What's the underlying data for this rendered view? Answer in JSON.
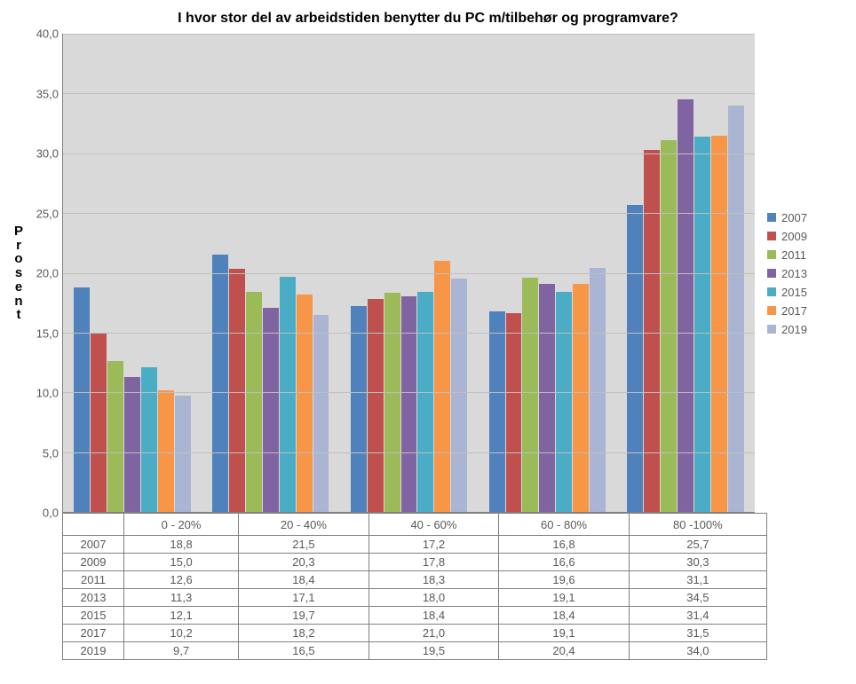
{
  "chart": {
    "type": "bar",
    "title": "I hvor stor del av arbeidstiden benytter du PC m/tilbehør og programvare?",
    "y_axis": {
      "label_vertical": "Prosent",
      "min": 0.0,
      "max": 40.0,
      "tick_step": 5.0,
      "tick_labels": [
        "0,0",
        "5,0",
        "10,0",
        "15,0",
        "20,0",
        "25,0",
        "30,0",
        "35,0",
        "40,0"
      ],
      "label_fontsize": 15,
      "tick_fontsize": 13
    },
    "categories": [
      "0 - 20%",
      "20 - 40%",
      "40 - 60%",
      "60 - 80%",
      "80 -100%"
    ],
    "series": [
      {
        "name": "2007",
        "color": "#4f81bd",
        "values": [
          18.8,
          21.5,
          17.2,
          16.8,
          25.7
        ]
      },
      {
        "name": "2009",
        "color": "#c0504d",
        "values": [
          15.0,
          20.3,
          17.8,
          16.6,
          30.3
        ]
      },
      {
        "name": "2011",
        "color": "#9bbb59",
        "values": [
          12.6,
          18.4,
          18.3,
          19.6,
          31.1
        ]
      },
      {
        "name": "2013",
        "color": "#8064a2",
        "values": [
          11.3,
          17.1,
          18.0,
          19.1,
          34.5
        ]
      },
      {
        "name": "2015",
        "color": "#4bacc6",
        "values": [
          12.1,
          19.7,
          18.4,
          18.4,
          31.4
        ]
      },
      {
        "name": "2017",
        "color": "#f79646",
        "values": [
          10.2,
          18.2,
          21.0,
          19.1,
          31.5
        ]
      },
      {
        "name": "2019",
        "color": "#aab5d4",
        "values": [
          9.7,
          16.5,
          19.5,
          20.4,
          34.0
        ]
      }
    ],
    "display_values": [
      [
        "18,8",
        "21,5",
        "17,2",
        "16,8",
        "25,7"
      ],
      [
        "15,0",
        "20,3",
        "17,8",
        "16,6",
        "30,3"
      ],
      [
        "12,6",
        "18,4",
        "18,3",
        "19,6",
        "31,1"
      ],
      [
        "11,3",
        "17,1",
        "18,0",
        "19,1",
        "34,5"
      ],
      [
        "12,1",
        "19,7",
        "18,4",
        "18,4",
        "31,4"
      ],
      [
        "10,2",
        "18,2",
        "21,0",
        "19,1",
        "31,5"
      ],
      [
        "9,7",
        "16,5",
        "19,5",
        "20,4",
        "34,0"
      ]
    ],
    "plot_background": "#d9d9d9",
    "grid_color": "#bfbfbf",
    "axis_color": "#808080",
    "bar_group_width": 0.85,
    "title_fontsize": 16,
    "legend_fontsize": 13,
    "table_fontsize": 13
  }
}
